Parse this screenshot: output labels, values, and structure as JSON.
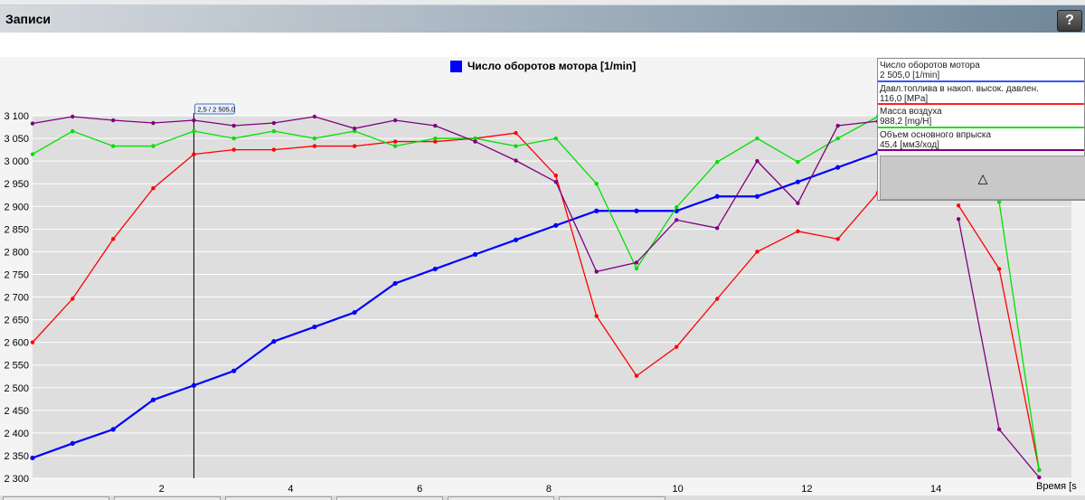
{
  "window": {
    "title": "Записи",
    "help_label": "?"
  },
  "legend": {
    "label": "Число оборотов мотора [1/min]",
    "color": "#0000ff"
  },
  "panel": {
    "items": [
      {
        "name": "Число оборотов мотора",
        "value": "2 505,0 [1/min]",
        "color": "#3355ff"
      },
      {
        "name": "Давл.топлива в накоп. высок. давлен.",
        "value": "116,0 [MPa]",
        "color": "#ff2020"
      },
      {
        "name": "Масса воздуха",
        "value": "988,2 [mg/H]",
        "color": "#22dd22"
      },
      {
        "name": "Объем основного впрыска",
        "value": "45,4 [мм3/ход]",
        "color": "#800080"
      }
    ],
    "collapse_icon": "triangle-up-icon",
    "collapse_glyph": "△"
  },
  "cursor": {
    "label": "2,5 / 2 505,0",
    "x": 2.5
  },
  "chart_data": {
    "type": "line",
    "xlabel": "Время [s",
    "ylabel": "",
    "xlim": [
      0,
      16.1
    ],
    "ylim": [
      2300,
      3100
    ],
    "x_ticks": [
      2,
      4,
      6,
      8,
      10,
      12,
      14
    ],
    "y_ticks": [
      2300,
      2350,
      2400,
      2450,
      2500,
      2550,
      2600,
      2650,
      2700,
      2750,
      2800,
      2850,
      2900,
      2950,
      3000,
      3050,
      3100
    ],
    "y_tick_labels": [
      "2 300",
      "2 350",
      "2 400",
      "2 450",
      "2 500",
      "2 550",
      "2 600",
      "2 650",
      "2 700",
      "2 750",
      "2 800",
      "2 850",
      "2 900",
      "2 950",
      "3 000",
      "3 050",
      "3 100"
    ],
    "x": [
      0,
      0.62,
      1.25,
      1.87,
      2.5,
      3.12,
      3.74,
      4.37,
      4.99,
      5.62,
      6.24,
      6.86,
      7.49,
      8.11,
      8.74,
      9.36,
      9.98,
      10.61,
      11.23,
      11.86,
      12.48,
      13.1,
      13.73,
      14.35,
      14.98,
      15.6
    ],
    "series": [
      {
        "name": "Число оборотов мотора",
        "color": "#0000ff",
        "values": [
          2345,
          2377,
          2408,
          2473,
          2505,
          2537,
          2602,
          2634,
          2666,
          2730,
          2762,
          2794,
          2826,
          2858,
          2890,
          2890,
          2890,
          2922,
          2922,
          2954,
          2986,
          3018,
          null,
          null,
          null,
          null
        ]
      },
      {
        "name": "Давл.топлива в накоп. высок. давлен.",
        "color": "#ff0000",
        "values": [
          2600,
          2696,
          2828,
          2940,
          3015,
          3025,
          3025,
          3033,
          3033,
          3043,
          3043,
          3050,
          3062,
          2968,
          2658,
          2526,
          2590,
          2696,
          2800,
          2845,
          2828,
          2930,
          null,
          2902,
          2762,
          2318
        ]
      },
      {
        "name": "Масса воздуха",
        "color": "#00e000",
        "values": [
          3015,
          3066,
          3033,
          3033,
          3066,
          3050,
          3066,
          3050,
          3066,
          3033,
          3050,
          3050,
          3033,
          3050,
          2950,
          2763,
          2898,
          2998,
          3050,
          2998,
          3050,
          3098,
          null,
          null,
          2910,
          2318
        ]
      },
      {
        "name": "Объем основного впрыска",
        "color": "#800080",
        "values": [
          3083,
          3098,
          3090,
          3084,
          3090,
          3078,
          3084,
          3098,
          3072,
          3090,
          3078,
          3043,
          3001,
          2954,
          2756,
          2776,
          2870,
          2852,
          3000,
          2907,
          3078,
          3088,
          null,
          2872,
          2408,
          2302
        ]
      }
    ]
  }
}
